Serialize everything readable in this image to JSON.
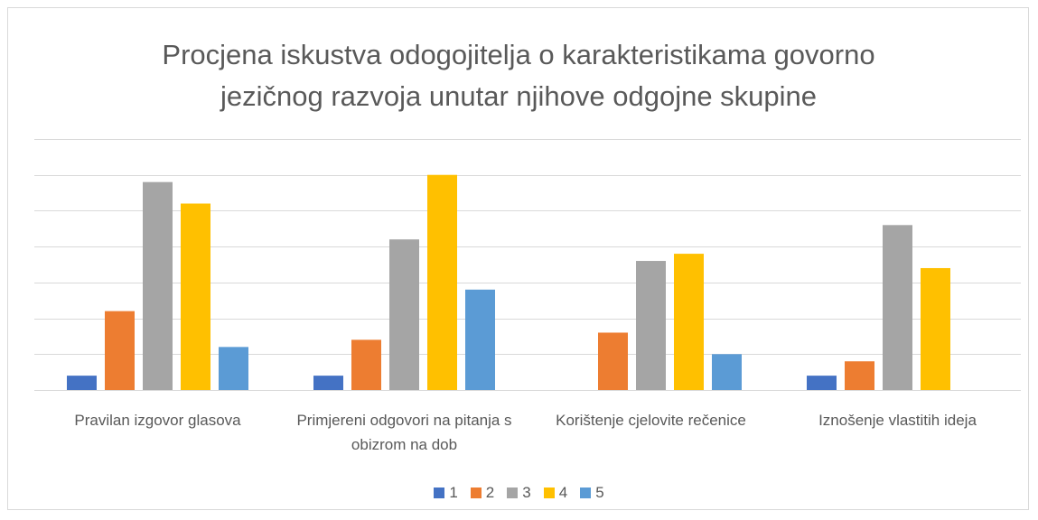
{
  "chart_data": {
    "type": "bar",
    "title": "Procjena iskustva odogojitelja o karakteristikama govorno jezičnog razvoja unutar njihove odgojne skupine",
    "categories": [
      "Pravilan izgovor glasova",
      "Primjereni odgovori na pitanja s obizrom na dob",
      "Korištenje cjelovite rečenice",
      "Iznošenje vlastitih ideja"
    ],
    "series": [
      {
        "name": "1",
        "color": "#4472c4",
        "values": [
          0.8,
          0.8,
          0,
          0.8
        ]
      },
      {
        "name": "2",
        "color": "#ed7d31",
        "values": [
          4.4,
          2.8,
          3.2,
          1.6
        ]
      },
      {
        "name": "3",
        "color": "#a5a5a5",
        "values": [
          11.6,
          8.4,
          7.2,
          9.2
        ]
      },
      {
        "name": "4",
        "color": "#ffc000",
        "values": [
          10.4,
          12,
          7.6,
          6.8
        ]
      },
      {
        "name": "5",
        "color": "#5b9bd5",
        "values": [
          2.4,
          5.6,
          2,
          0
        ]
      }
    ],
    "ylim": [
      0,
      14
    ],
    "yticks": [
      0,
      2,
      4,
      6,
      8,
      10,
      12,
      14
    ],
    "grid": true,
    "legend": "bottom"
  }
}
